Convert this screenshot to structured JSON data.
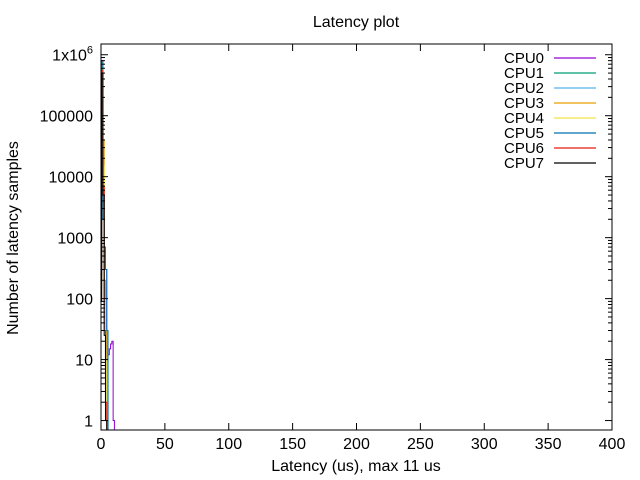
{
  "chart_data": {
    "type": "line",
    "title": "Latency plot",
    "xlabel": "Latency (us), max 11 us",
    "ylabel": "Number of latency samples",
    "xlim": [
      0,
      400
    ],
    "ylim": [
      0.7,
      1500000
    ],
    "yscale": "log",
    "grid": false,
    "legend_position": "top-right",
    "x_ticks": [
      0,
      50,
      100,
      150,
      200,
      250,
      300,
      350,
      400
    ],
    "y_ticks": [
      {
        "value": 1,
        "label": "1"
      },
      {
        "value": 10,
        "label": "10"
      },
      {
        "value": 100,
        "label": "100"
      },
      {
        "value": 1000,
        "label": "1000"
      },
      {
        "value": 10000,
        "label": "10000"
      },
      {
        "value": 100000,
        "label": "100000"
      },
      {
        "value": 1000000,
        "label": "1x10",
        "superscript": "6"
      }
    ],
    "series": [
      {
        "name": "CPU0",
        "color": "#9400d3",
        "x": [
          0,
          1,
          2,
          3,
          4,
          5,
          6,
          7,
          8,
          9,
          10,
          11
        ],
        "values": [
          300,
          800000,
          6000,
          300,
          300,
          15,
          12,
          15,
          18,
          20,
          1,
          0.7
        ]
      },
      {
        "name": "CPU1",
        "color": "#009e73",
        "x": [
          0,
          1,
          2,
          3,
          4,
          5,
          6
        ],
        "values": [
          200,
          750000,
          4000,
          150,
          30,
          2,
          0.7
        ]
      },
      {
        "name": "CPU2",
        "color": "#56b4e9",
        "x": [
          0,
          1,
          2,
          3,
          4,
          5,
          6
        ],
        "values": [
          150,
          700000,
          3500,
          120,
          25,
          1,
          0.7
        ]
      },
      {
        "name": "CPU3",
        "color": "#e69f00",
        "x": [
          0,
          1,
          2,
          3,
          4,
          5,
          6
        ],
        "values": [
          180,
          650000,
          40000,
          200,
          30,
          3,
          0.7
        ]
      },
      {
        "name": "CPU4",
        "color": "#f0e442",
        "x": [
          0,
          1,
          2,
          3,
          4,
          5
        ],
        "values": [
          120,
          600000,
          15000,
          100,
          10,
          0.7
        ]
      },
      {
        "name": "CPU5",
        "color": "#0072b2",
        "x": [
          0,
          1,
          2,
          3,
          4,
          5,
          6
        ],
        "values": [
          250,
          700000,
          2000,
          700,
          300,
          30,
          0.7
        ]
      },
      {
        "name": "CPU6",
        "color": "#e51e10",
        "x": [
          0,
          1,
          2,
          3,
          4,
          5
        ],
        "values": [
          100,
          550000,
          7000,
          30,
          2,
          0.7
        ]
      },
      {
        "name": "CPU7",
        "color": "#000000",
        "x": [
          0,
          1,
          2,
          3,
          4,
          5
        ],
        "values": [
          90,
          500000,
          5000,
          25,
          1,
          0.7
        ]
      }
    ]
  }
}
